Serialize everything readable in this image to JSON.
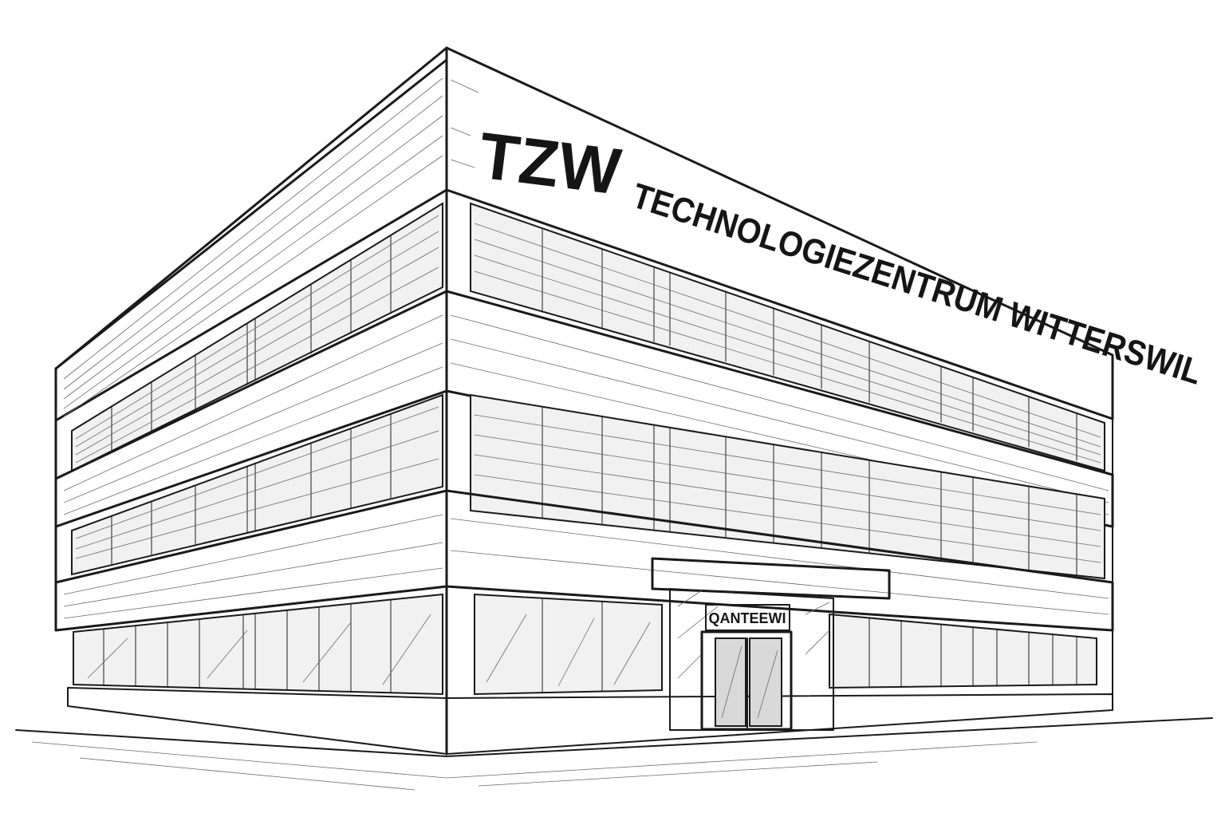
{
  "signage": {
    "logo": "TZW",
    "name": "TECHNOLOGIEZENTRUM WITTERSWIL"
  },
  "entrance": {
    "door_sign": "QANTEEWI"
  }
}
